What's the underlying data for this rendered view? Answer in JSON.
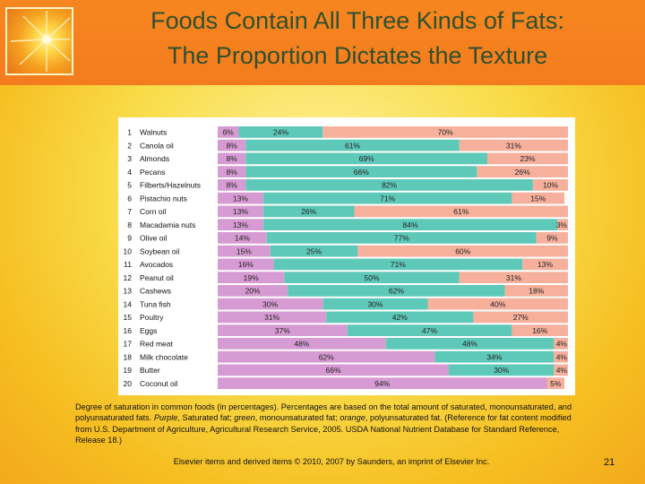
{
  "slide": {
    "title_line1": "Foods Contain All Three Kinds of Fats:",
    "title_line2": "The Proportion Dictates the Texture",
    "caption_part1": "Degree of saturation in common foods (in percentages). Percentages are based on the total amount of saturated, monounsaturated, and polyunsaturated fats. ",
    "caption_purple": "Purple",
    "caption_part2": ", Saturated fat; ",
    "caption_green": "green",
    "caption_part3": ", monounsaturated fat; ",
    "caption_orange": "orange",
    "caption_part4": ", polyunsaturated fat. (Reference for fat content modified from U.S. Department of Agriculture, Agricultural Research Service, 2005. USDA National Nutrient Database for Standard Reference, Release 18.)",
    "footer": "Elsevier items and derived items © 2010, 2007 by Saunders, an imprint of Elsevier Inc.",
    "page_number": "21"
  },
  "colors": {
    "header": "#f47c1e",
    "title_text": "#2f4f2f",
    "saturated": "#d79bd3",
    "monounsaturated": "#5fc9b9",
    "polyunsaturated": "#f6b09c",
    "row_divider": "#ffffff"
  },
  "chart_data": {
    "type": "bar",
    "orientation": "horizontal-stacked-100",
    "series_order": [
      "saturated",
      "monounsaturated",
      "polyunsaturated"
    ],
    "rows": [
      {
        "num": "1",
        "food": "Walnuts",
        "values": [
          6,
          24,
          70
        ],
        "labels": [
          "6%",
          "24%",
          "70%"
        ]
      },
      {
        "num": "2",
        "food": "Canola oil",
        "values": [
          8,
          61,
          31
        ],
        "labels": [
          "8%",
          "61%",
          "31%"
        ]
      },
      {
        "num": "3",
        "food": "Almonds",
        "values": [
          8,
          69,
          23
        ],
        "labels": [
          "8%",
          "69%",
          "23%"
        ]
      },
      {
        "num": "4",
        "food": "Pecans",
        "values": [
          8,
          66,
          26
        ],
        "labels": [
          "8%",
          "66%",
          "26%"
        ]
      },
      {
        "num": "5",
        "food": "Filberts/Hazelnuts",
        "values": [
          8,
          82,
          10
        ],
        "labels": [
          "8%",
          "82%",
          "10%"
        ]
      },
      {
        "num": "6",
        "food": "Pistachio nuts",
        "values": [
          13,
          71,
          15
        ],
        "labels": [
          "13%",
          "71%",
          "15%"
        ]
      },
      {
        "num": "7",
        "food": "Corn oil",
        "values": [
          13,
          26,
          61
        ],
        "labels": [
          "13%",
          "26%",
          "61%"
        ]
      },
      {
        "num": "8",
        "food": "Macadamia nuts",
        "values": [
          13,
          84,
          3
        ],
        "labels": [
          "13%",
          "84%",
          "3%"
        ]
      },
      {
        "num": "9",
        "food": "Olive oil",
        "values": [
          14,
          77,
          9
        ],
        "labels": [
          "14%",
          "77%",
          "9%"
        ]
      },
      {
        "num": "10",
        "food": "Soybean oil",
        "values": [
          15,
          25,
          60
        ],
        "labels": [
          "15%",
          "25%",
          "60%"
        ]
      },
      {
        "num": "11",
        "food": "Avocados",
        "values": [
          16,
          71,
          13
        ],
        "labels": [
          "16%",
          "71%",
          "13%"
        ]
      },
      {
        "num": "12",
        "food": "Peanut oil",
        "values": [
          19,
          50,
          31
        ],
        "labels": [
          "19%",
          "50%",
          "31%"
        ]
      },
      {
        "num": "13",
        "food": "Cashews",
        "values": [
          20,
          62,
          18
        ],
        "labels": [
          "20%",
          "62%",
          "18%"
        ]
      },
      {
        "num": "14",
        "food": "Tuna fish",
        "values": [
          30,
          30,
          40
        ],
        "labels": [
          "30%",
          "30%",
          "40%"
        ]
      },
      {
        "num": "15",
        "food": "Poultry",
        "values": [
          31,
          42,
          27
        ],
        "labels": [
          "31%",
          "42%",
          "27%"
        ]
      },
      {
        "num": "16",
        "food": "Eggs",
        "values": [
          37,
          47,
          16
        ],
        "labels": [
          "37%",
          "47%",
          "16%"
        ]
      },
      {
        "num": "17",
        "food": "Red meat",
        "values": [
          48,
          48,
          4
        ],
        "labels": [
          "48%",
          "48%",
          "4%"
        ]
      },
      {
        "num": "18",
        "food": "Milk chocolate",
        "values": [
          62,
          34,
          4
        ],
        "labels": [
          "62%",
          "34%",
          "4%"
        ]
      },
      {
        "num": "19",
        "food": "Butter",
        "values": [
          66,
          30,
          4
        ],
        "labels": [
          "66%",
          "30%",
          "4%"
        ]
      },
      {
        "num": "20",
        "food": "Coconut oil",
        "values": [
          94,
          0,
          5
        ],
        "labels": [
          "94%",
          "",
          "5%"
        ]
      }
    ],
    "xlim": [
      0,
      100
    ]
  }
}
